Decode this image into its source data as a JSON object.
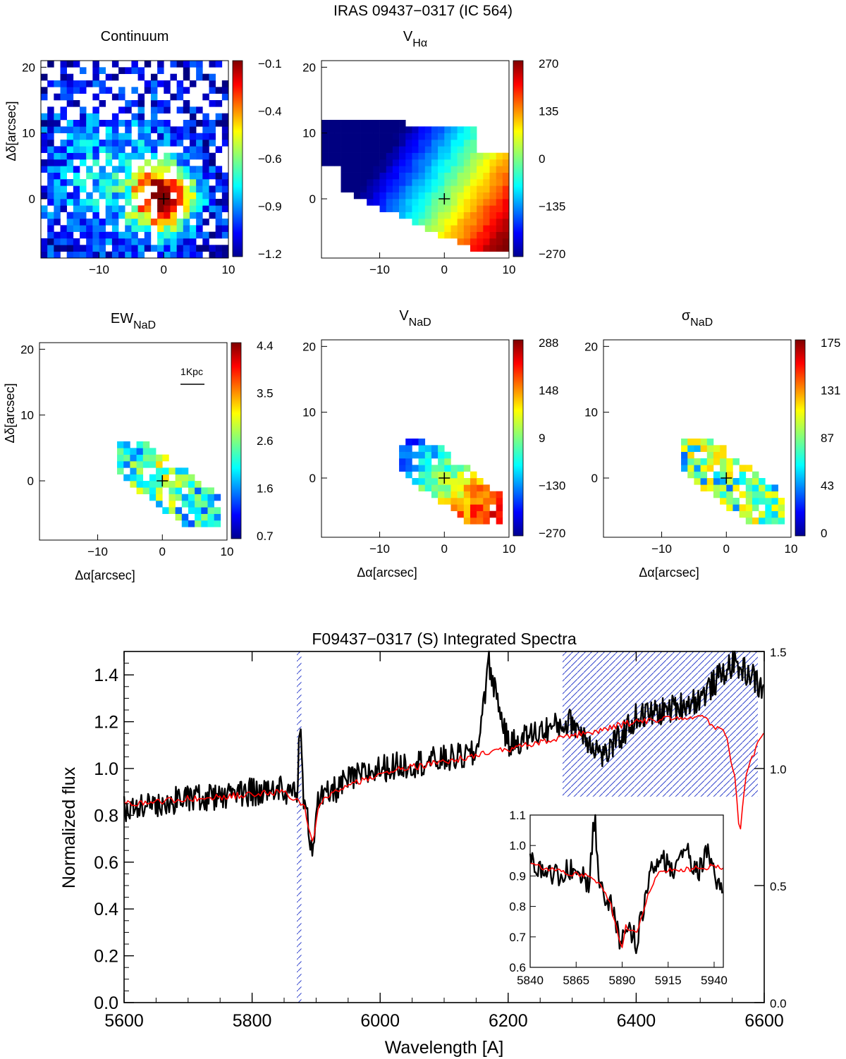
{
  "figure_title": "IRAS 09437−0317 (IC 564)",
  "maps": {
    "xlabel": "Δα[arcsec]",
    "ylabel": "Δδ[arcsec]",
    "xticks": [
      "−10",
      "0",
      "10"
    ],
    "yticks": [
      "20",
      "10",
      "0"
    ],
    "scalebar_label": "1Kpc",
    "panels": [
      {
        "id": "continuum",
        "title": "Continuum",
        "title_sub": "",
        "cbar_ticks": [
          "−0.1",
          "−0.4",
          "−0.6",
          "−0.9",
          "−1.2"
        ],
        "pattern": "continuum",
        "show_xlabel": false,
        "show_ylabel": true
      },
      {
        "id": "vha",
        "title": "V",
        "title_sub": "Hα",
        "cbar_ticks": [
          "270",
          "135",
          "0",
          "−135",
          "−270"
        ],
        "pattern": "velocity",
        "show_xlabel": false,
        "show_ylabel": false
      },
      {
        "id": "ewnad",
        "title": "EW",
        "title_sub": "NaD",
        "cbar_ticks": [
          "4.4",
          "3.5",
          "2.6",
          "1.6",
          "0.7"
        ],
        "pattern": "ew",
        "show_xlabel": true,
        "show_ylabel": true
      },
      {
        "id": "vnad",
        "title": "V",
        "title_sub": "NaD",
        "cbar_ticks": [
          "288",
          "148",
          "9",
          "−130",
          "−270"
        ],
        "pattern": "vnad",
        "show_xlabel": true,
        "show_ylabel": false
      },
      {
        "id": "signad",
        "title": "σ",
        "title_sub": "NaD",
        "cbar_ticks": [
          "175",
          "131",
          "87",
          "43",
          "0"
        ],
        "pattern": "sigma",
        "show_xlabel": true,
        "show_ylabel": false
      }
    ]
  },
  "chart_data": {
    "type": "line",
    "title": "F09437−0317 (S) Integrated Spectra",
    "xlabel": "Wavelength [A]",
    "ylabel": "Normalized flux",
    "xlim": [
      5600,
      6600
    ],
    "ylim": [
      0.0,
      1.5
    ],
    "xticks": [
      5600,
      5800,
      6000,
      6200,
      6400,
      6600
    ],
    "yticks": [
      0.0,
      0.2,
      0.4,
      0.6,
      0.8,
      1.0,
      1.2,
      1.4
    ],
    "right_axis_ticks": [
      {
        "value": 0.0,
        "label": "0.0"
      },
      {
        "value": 0.5,
        "label": "0.5"
      },
      {
        "value": 1.0,
        "label": "1.0"
      },
      {
        "value": 1.5,
        "label": "1.5"
      }
    ],
    "series": [
      {
        "name": "observed",
        "color": "#000000",
        "x": [
          5600,
          5650,
          5700,
          5750,
          5800,
          5850,
          5870,
          5875,
          5880,
          5890,
          5895,
          5900,
          5950,
          6000,
          6050,
          6100,
          6150,
          6170,
          6200,
          6250,
          6300,
          6350,
          6400,
          6450,
          6500,
          6550,
          6580,
          6600
        ],
        "y": [
          0.83,
          0.85,
          0.87,
          0.88,
          0.9,
          0.91,
          0.9,
          1.19,
          0.88,
          0.72,
          0.65,
          0.85,
          0.95,
          1.0,
          1.02,
          1.04,
          1.06,
          1.45,
          1.1,
          1.16,
          1.2,
          1.05,
          1.22,
          1.25,
          1.3,
          1.45,
          1.4,
          1.32
        ]
      },
      {
        "name": "model",
        "color": "#ff0000",
        "x": [
          5600,
          5700,
          5800,
          5850,
          5880,
          5890,
          5896,
          5905,
          5950,
          6000,
          6100,
          6200,
          6300,
          6400,
          6500,
          6540,
          6555,
          6562,
          6570,
          6590,
          6600
        ],
        "y": [
          0.85,
          0.87,
          0.89,
          0.9,
          0.85,
          0.74,
          0.68,
          0.86,
          0.93,
          0.98,
          1.03,
          1.08,
          1.14,
          1.2,
          1.22,
          1.15,
          0.95,
          0.7,
          0.95,
          1.12,
          1.14
        ]
      }
    ],
    "masked_regions": [
      [
        5870,
        5877
      ],
      [
        6285,
        6590
      ]
    ],
    "inset": {
      "xlim": [
        5840,
        5945
      ],
      "ylim": [
        0.6,
        1.1
      ],
      "xticks": [
        5840,
        5865,
        5890,
        5915,
        5940
      ],
      "yticks": [
        0.6,
        0.7,
        0.8,
        0.9,
        1.0,
        1.1
      ],
      "series": [
        {
          "name": "observed",
          "color": "#000000",
          "x": [
            5840,
            5848,
            5856,
            5864,
            5872,
            5875,
            5878,
            5882,
            5886,
            5889,
            5892,
            5895,
            5898,
            5902,
            5906,
            5912,
            5918,
            5924,
            5930,
            5936,
            5942
          ],
          "y": [
            0.95,
            0.92,
            0.9,
            0.93,
            0.88,
            1.1,
            0.86,
            0.82,
            0.78,
            0.65,
            0.76,
            0.72,
            0.68,
            0.82,
            0.92,
            0.96,
            0.93,
            1.0,
            0.9,
            0.98,
            0.88
          ]
        },
        {
          "name": "model",
          "color": "#ff0000",
          "x": [
            5840,
            5850,
            5860,
            5870,
            5878,
            5884,
            5888,
            5890,
            5892,
            5895,
            5898,
            5902,
            5908,
            5915,
            5925,
            5935,
            5942
          ],
          "y": [
            0.94,
            0.92,
            0.91,
            0.9,
            0.88,
            0.8,
            0.7,
            0.66,
            0.74,
            0.72,
            0.71,
            0.8,
            0.9,
            0.92,
            0.92,
            0.93,
            0.93
          ]
        }
      ]
    }
  }
}
